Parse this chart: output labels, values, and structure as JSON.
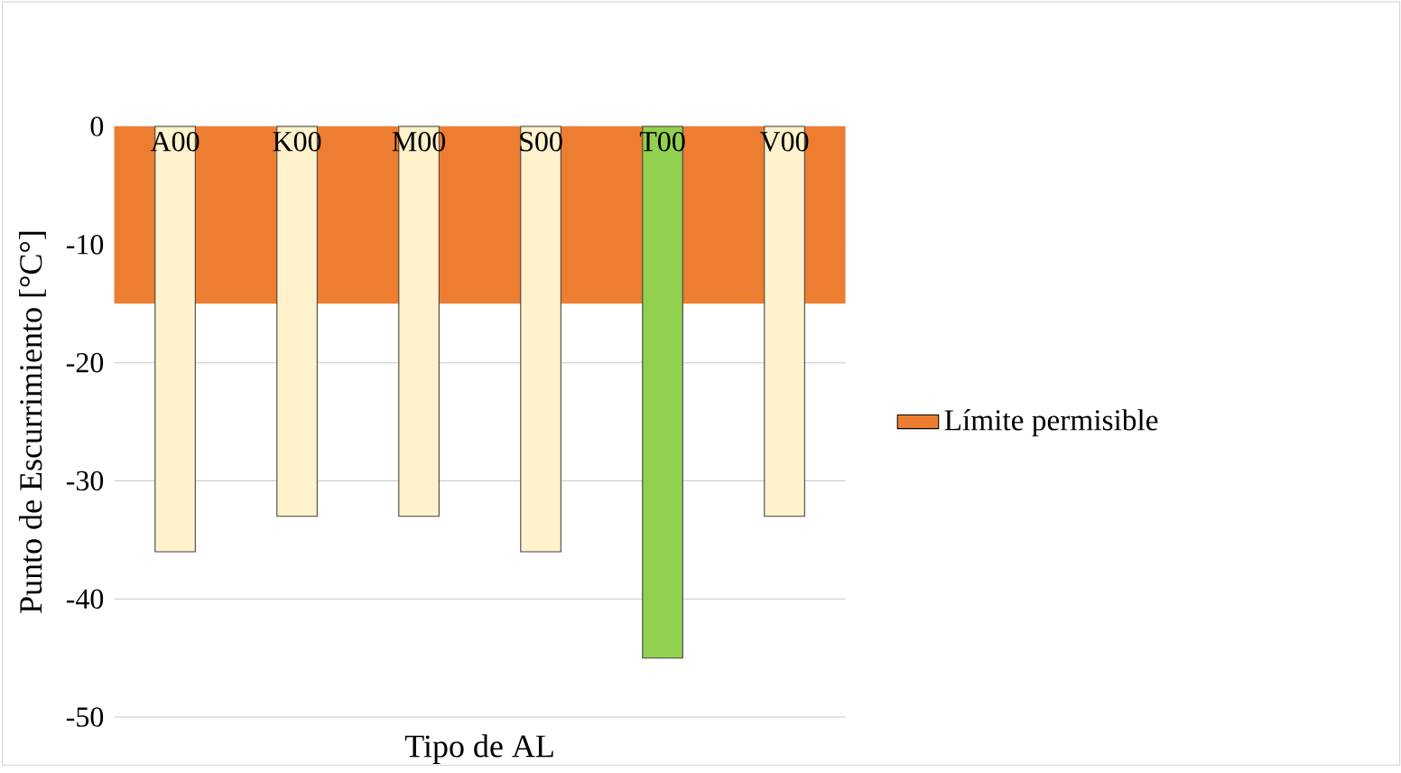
{
  "chart_data": {
    "type": "bar",
    "xlabel": "Tipo de AL",
    "ylabel": "Punto de Escurrimiento  [°C°]",
    "categories": [
      "A00",
      "K00",
      "M00",
      "S00",
      "T00",
      "V00"
    ],
    "values": [
      -36,
      -33,
      -33,
      -36,
      -45,
      -33
    ],
    "colors": [
      "#fff2cc",
      "#fff2cc",
      "#fff2cc",
      "#fff2cc",
      "#92d050",
      "#fff2cc"
    ],
    "ylim": [
      -50,
      0
    ],
    "yticks": [
      -50,
      -40,
      -30,
      -20,
      -10,
      0
    ],
    "grid": "y",
    "bands": [
      {
        "axis": "y",
        "from": -15,
        "to": 0,
        "label": "Límite permisible",
        "color": "#ed7d31"
      }
    ],
    "legend": "right"
  }
}
